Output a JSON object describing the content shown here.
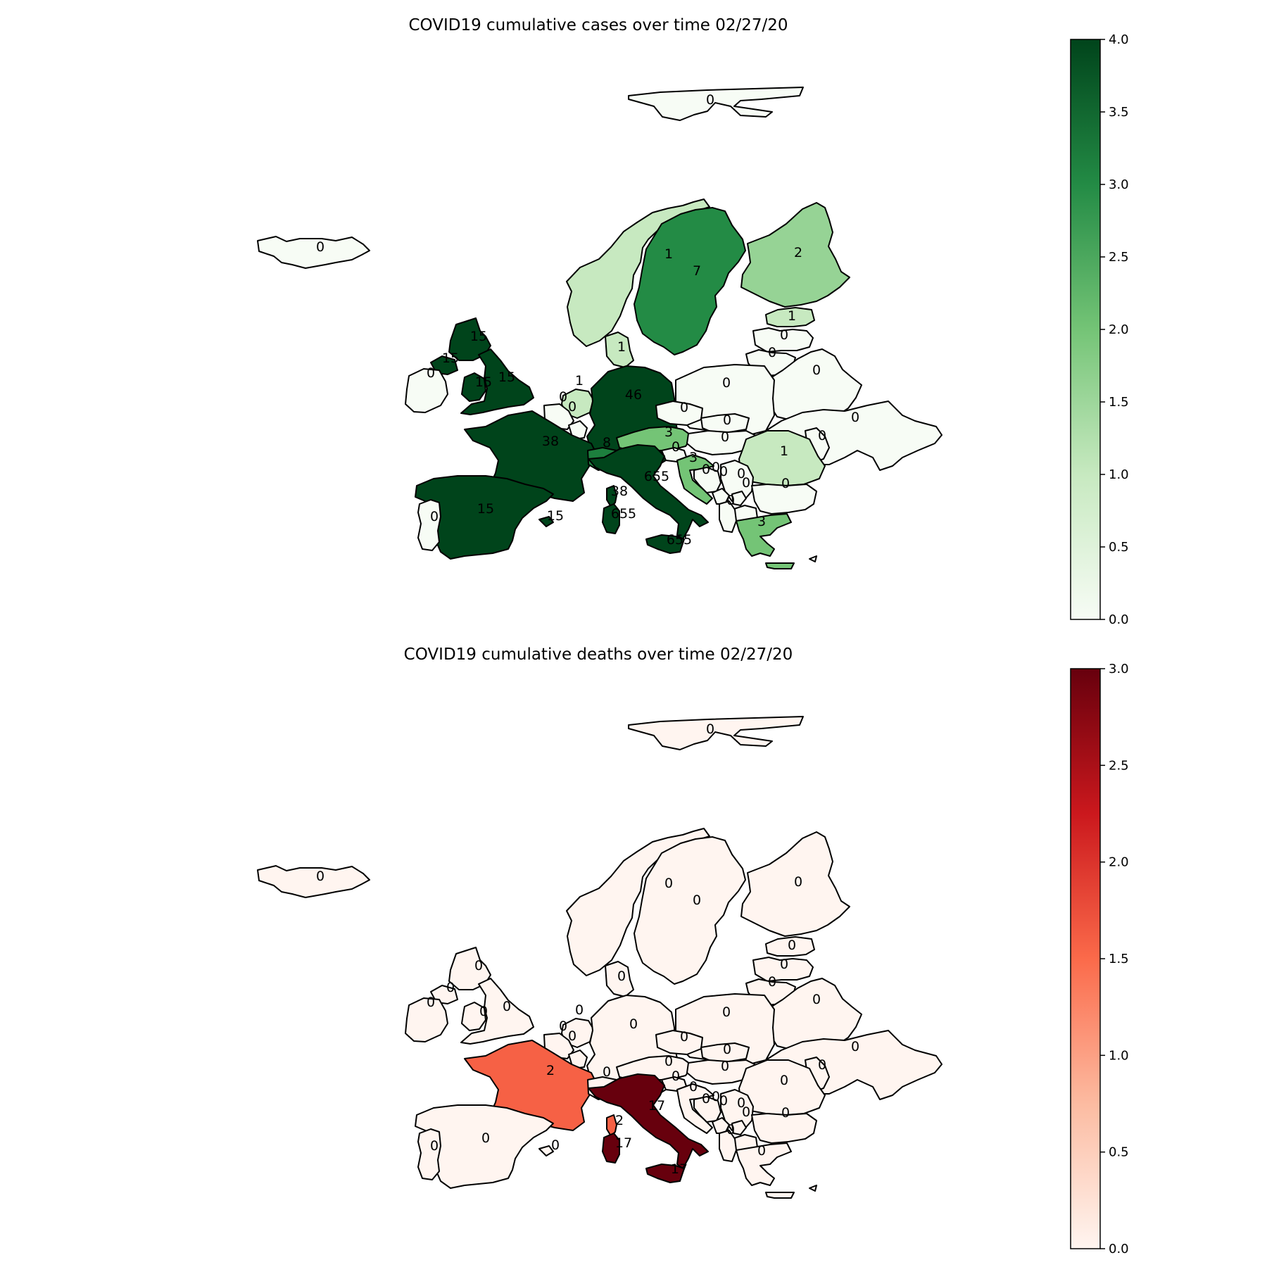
{
  "colors": {
    "cases_low": "#f7fcf5",
    "cases_high": "#00441b",
    "deaths_low": "#fff5f0",
    "deaths_high": "#67000d"
  },
  "maps": [
    {
      "id": "cases",
      "title": "COVID19 cumulative cases over time 02/27/20",
      "colormap": "Greens",
      "scale": "log2(value + 1)",
      "colorbar": {
        "min": 0.0,
        "max": 4.0,
        "ticks": [
          "0.0",
          "0.5",
          "1.0",
          "1.5",
          "2.0",
          "2.5",
          "3.0",
          "3.5",
          "4.0"
        ]
      },
      "regions": [
        {
          "name": "Svalbard",
          "label": "0",
          "value": 0
        },
        {
          "name": "Iceland",
          "label": "0",
          "value": 0
        },
        {
          "name": "Norway",
          "label": "1",
          "value": 1
        },
        {
          "name": "Sweden",
          "label": "7",
          "value": 7
        },
        {
          "name": "Finland",
          "label": "2",
          "value": 2
        },
        {
          "name": "Estonia",
          "label": "1",
          "value": 1
        },
        {
          "name": "Latvia",
          "label": "0",
          "value": 0
        },
        {
          "name": "Lithuania",
          "label": "0",
          "value": 0
        },
        {
          "name": "Belarus",
          "label": "0",
          "value": 0
        },
        {
          "name": "Scotland",
          "label": "15",
          "value": 15
        },
        {
          "name": "Northern Ireland",
          "label": "15",
          "value": 15
        },
        {
          "name": "Ireland",
          "label": "0",
          "value": 0
        },
        {
          "name": "Wales",
          "label": "15",
          "value": 15
        },
        {
          "name": "England",
          "label": "15",
          "value": 15
        },
        {
          "name": "Denmark",
          "label": "1",
          "value": 1
        },
        {
          "name": "Netherlands",
          "label": "1",
          "value": 1
        },
        {
          "name": "Belgium",
          "label": "0",
          "value": 0
        },
        {
          "name": "Luxembourg",
          "label": "0",
          "value": 0
        },
        {
          "name": "Germany",
          "label": "46",
          "value": 46
        },
        {
          "name": "Poland",
          "label": "0",
          "value": 0
        },
        {
          "name": "Ukraine",
          "label": "0",
          "value": 0
        },
        {
          "name": "France",
          "label": "38",
          "value": 38
        },
        {
          "name": "Switzerland",
          "label": "8",
          "value": 8
        },
        {
          "name": "Austria",
          "label": "3",
          "value": 3
        },
        {
          "name": "Czechia",
          "label": "0",
          "value": 0
        },
        {
          "name": "Slovakia",
          "label": "0",
          "value": 0
        },
        {
          "name": "Hungary",
          "label": "0",
          "value": 0
        },
        {
          "name": "Moldova",
          "label": "0",
          "value": 0
        },
        {
          "name": "Romania",
          "label": "1",
          "value": 1
        },
        {
          "name": "Slovenia",
          "label": "0",
          "value": 0
        },
        {
          "name": "Croatia",
          "label": "3",
          "value": 3
        },
        {
          "name": "Bosnia",
          "label": "0",
          "value": 0
        },
        {
          "name": "Serbia",
          "label": "0",
          "value": 0
        },
        {
          "name": "Montenegro",
          "label": "0",
          "value": 0
        },
        {
          "name": "Kosovo",
          "label": "0",
          "value": 0
        },
        {
          "name": "North Macedonia",
          "label": "0",
          "value": 0
        },
        {
          "name": "Albania",
          "label": "0",
          "value": 0
        },
        {
          "name": "Bulgaria",
          "label": "0",
          "value": 0
        },
        {
          "name": "Greece",
          "label": "3",
          "value": 3
        },
        {
          "name": "Italy",
          "label": "655",
          "value": 655
        },
        {
          "name": "Corsica",
          "label": "38",
          "value": 38
        },
        {
          "name": "Sardinia",
          "label": "655",
          "value": 655
        },
        {
          "name": "Sicily",
          "label": "655",
          "value": 655
        },
        {
          "name": "Spain",
          "label": "15",
          "value": 15
        },
        {
          "name": "Portugal",
          "label": "0",
          "value": 0
        },
        {
          "name": "Balearics",
          "label": "15",
          "value": 15
        },
        {
          "name": "Crete",
          "label": "",
          "value": 3
        },
        {
          "name": "Cyprus",
          "label": "",
          "value": 0
        }
      ]
    },
    {
      "id": "deaths",
      "title": "COVID19 cumulative deaths over time 02/27/20",
      "colormap": "Reds",
      "scale": "log2(value + 1)",
      "colorbar": {
        "min": 0.0,
        "max": 3.0,
        "ticks": [
          "0.0",
          "0.5",
          "1.0",
          "1.5",
          "2.0",
          "2.5",
          "3.0"
        ]
      },
      "regions": [
        {
          "name": "Svalbard",
          "label": "0",
          "value": 0
        },
        {
          "name": "Iceland",
          "label": "0",
          "value": 0
        },
        {
          "name": "Norway",
          "label": "0",
          "value": 0
        },
        {
          "name": "Sweden",
          "label": "0",
          "value": 0
        },
        {
          "name": "Finland",
          "label": "0",
          "value": 0
        },
        {
          "name": "Estonia",
          "label": "0",
          "value": 0
        },
        {
          "name": "Latvia",
          "label": "0",
          "value": 0
        },
        {
          "name": "Lithuania",
          "label": "0",
          "value": 0
        },
        {
          "name": "Belarus",
          "label": "0",
          "value": 0
        },
        {
          "name": "Scotland",
          "label": "0",
          "value": 0
        },
        {
          "name": "Northern Ireland",
          "label": "0",
          "value": 0
        },
        {
          "name": "Ireland",
          "label": "0",
          "value": 0
        },
        {
          "name": "Wales",
          "label": "0",
          "value": 0
        },
        {
          "name": "England",
          "label": "0",
          "value": 0
        },
        {
          "name": "Denmark",
          "label": "0",
          "value": 0
        },
        {
          "name": "Netherlands",
          "label": "0",
          "value": 0
        },
        {
          "name": "Belgium",
          "label": "0",
          "value": 0
        },
        {
          "name": "Luxembourg",
          "label": "0",
          "value": 0
        },
        {
          "name": "Germany",
          "label": "0",
          "value": 0
        },
        {
          "name": "Poland",
          "label": "0",
          "value": 0
        },
        {
          "name": "Ukraine",
          "label": "0",
          "value": 0
        },
        {
          "name": "France",
          "label": "2",
          "value": 2
        },
        {
          "name": "Switzerland",
          "label": "0",
          "value": 0
        },
        {
          "name": "Austria",
          "label": "0",
          "value": 0
        },
        {
          "name": "Czechia",
          "label": "0",
          "value": 0
        },
        {
          "name": "Slovakia",
          "label": "0",
          "value": 0
        },
        {
          "name": "Hungary",
          "label": "0",
          "value": 0
        },
        {
          "name": "Moldova",
          "label": "0",
          "value": 0
        },
        {
          "name": "Romania",
          "label": "0",
          "value": 0
        },
        {
          "name": "Slovenia",
          "label": "0",
          "value": 0
        },
        {
          "name": "Croatia",
          "label": "0",
          "value": 0
        },
        {
          "name": "Bosnia",
          "label": "0",
          "value": 0
        },
        {
          "name": "Serbia",
          "label": "0",
          "value": 0
        },
        {
          "name": "Montenegro",
          "label": "0",
          "value": 0
        },
        {
          "name": "Kosovo",
          "label": "0",
          "value": 0
        },
        {
          "name": "North Macedonia",
          "label": "0",
          "value": 0
        },
        {
          "name": "Albania",
          "label": "0",
          "value": 0
        },
        {
          "name": "Bulgaria",
          "label": "0",
          "value": 0
        },
        {
          "name": "Greece",
          "label": "0",
          "value": 0
        },
        {
          "name": "Italy",
          "label": "17",
          "value": 17
        },
        {
          "name": "Corsica",
          "label": "2",
          "value": 2
        },
        {
          "name": "Sardinia",
          "label": "17",
          "value": 17
        },
        {
          "name": "Sicily",
          "label": "17",
          "value": 17
        },
        {
          "name": "Spain",
          "label": "0",
          "value": 0
        },
        {
          "name": "Portugal",
          "label": "0",
          "value": 0
        },
        {
          "name": "Balearics",
          "label": "0",
          "value": 0
        },
        {
          "name": "Crete",
          "label": "",
          "value": 0
        },
        {
          "name": "Cyprus",
          "label": "",
          "value": 0
        }
      ]
    }
  ]
}
